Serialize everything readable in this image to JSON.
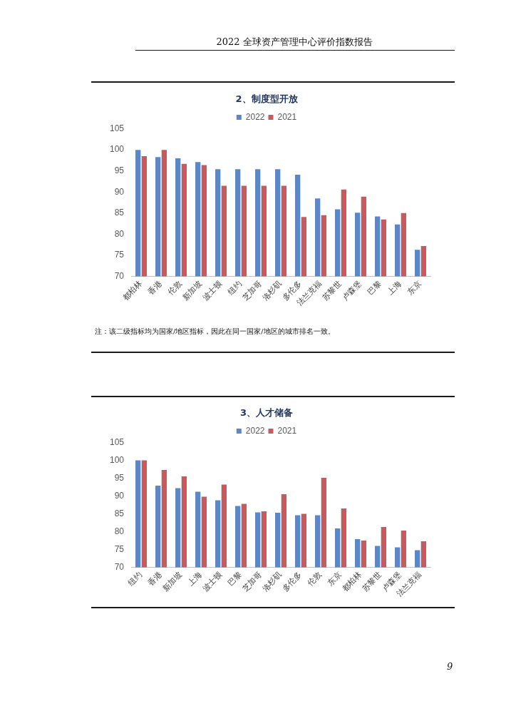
{
  "chart_data": [
    {
      "type": "bar",
      "title": "2、制度型开放",
      "categories": [
        "都柏林",
        "香港",
        "伦敦",
        "新加坡",
        "波士顿",
        "纽约",
        "芝加哥",
        "洛杉矶",
        "多伦多",
        "法兰克福",
        "苏黎世",
        "卢森堡",
        "巴黎",
        "上海",
        "东京"
      ],
      "series": [
        {
          "name": "2022",
          "color": "#5b87c7",
          "values": [
            100,
            98.3,
            98.0,
            97.1,
            95.4,
            95.4,
            95.4,
            95.4,
            94.1,
            88.5,
            85.9,
            85.1,
            84.2,
            82.3,
            76.3
          ]
        },
        {
          "name": "2021",
          "color": "#c85a5e",
          "values": [
            98.5,
            100,
            96.7,
            96.4,
            91.5,
            91.5,
            91.5,
            91.5,
            84.1,
            84.5,
            90.6,
            88.9,
            83.5,
            85.0,
            77.2
          ]
        }
      ],
      "ylim": [
        70,
        105
      ],
      "yticks": [
        70,
        75,
        80,
        85,
        90,
        95,
        100,
        105
      ],
      "grid": false,
      "legend": "top",
      "annotations": [
        "2022 全球资产管理中心评价指数报告",
        "注：该二级指标均为国家/地区指标，因此在同一国家/地区的城市排名一致。"
      ]
    },
    {
      "type": "bar",
      "title": "3、人才储备",
      "categories": [
        "纽约",
        "香港",
        "新加坡",
        "上海",
        "波士顿",
        "巴黎",
        "芝加哥",
        "洛杉矶",
        "多伦多",
        "伦敦",
        "东京",
        "都柏林",
        "苏黎世",
        "卢森堡",
        "法兰克福"
      ],
      "series": [
        {
          "name": "2022",
          "color": "#5b87c7",
          "values": [
            100,
            92.9,
            92.2,
            91.2,
            88.8,
            87.2,
            85.4,
            85.3,
            84.6,
            84.6,
            80.9,
            77.9,
            76.0,
            75.6,
            74.8
          ]
        },
        {
          "name": "2021",
          "color": "#c85a5e",
          "values": [
            100,
            97.3,
            95.5,
            89.8,
            93.2,
            87.8,
            85.7,
            90.5,
            85.0,
            95.1,
            86.5,
            77.5,
            81.3,
            80.3,
            77.3
          ]
        }
      ],
      "ylim": [
        70,
        105
      ],
      "yticks": [
        70,
        75,
        80,
        85,
        90,
        95,
        100,
        105
      ],
      "grid": false,
      "legend": "top",
      "annotations": [
        "9"
      ]
    }
  ]
}
